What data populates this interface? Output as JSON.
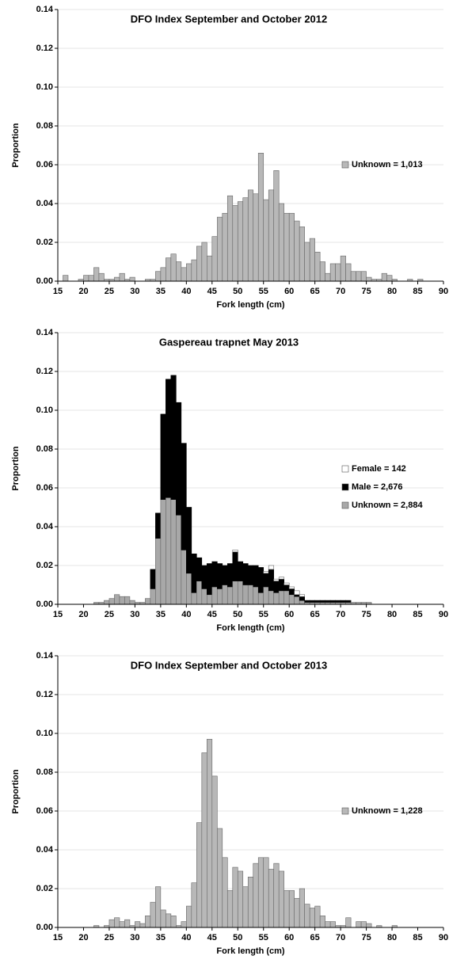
{
  "chart_data": [
    {
      "type": "bar",
      "title": "DFO Index September and October 2012",
      "xlabel": "Fork length (cm)",
      "ylabel": "Proportion",
      "x": [
        15,
        16,
        17,
        18,
        19,
        20,
        21,
        22,
        23,
        24,
        25,
        26,
        27,
        28,
        29,
        30,
        31,
        32,
        33,
        34,
        35,
        36,
        37,
        38,
        39,
        40,
        41,
        42,
        43,
        44,
        45,
        46,
        47,
        48,
        49,
        50,
        51,
        52,
        53,
        54,
        55,
        56,
        57,
        58,
        59,
        60,
        61,
        62,
        63,
        64,
        65,
        66,
        67,
        68,
        69,
        70,
        71,
        72,
        73,
        74,
        75,
        76,
        77,
        78,
        79,
        80,
        81,
        82,
        83,
        84,
        85,
        86,
        87,
        88,
        89
      ],
      "series": [
        {
          "name": "Unknown = 1,013",
          "color": "#b8b8b8",
          "values": [
            0,
            0.003,
            0,
            0,
            0.001,
            0.003,
            0.003,
            0.007,
            0.004,
            0.001,
            0.001,
            0.002,
            0.004,
            0.001,
            0.002,
            0,
            0,
            0.001,
            0.001,
            0.005,
            0.007,
            0.012,
            0.014,
            0.01,
            0.007,
            0.009,
            0.011,
            0.018,
            0.02,
            0.013,
            0.023,
            0.033,
            0.035,
            0.044,
            0.039,
            0.041,
            0.043,
            0.047,
            0.045,
            0.066,
            0.042,
            0.047,
            0.057,
            0.04,
            0.035,
            0.035,
            0.031,
            0.028,
            0.02,
            0.022,
            0.015,
            0.01,
            0.004,
            0.009,
            0.009,
            0.013,
            0.009,
            0.005,
            0.005,
            0.005,
            0.002,
            0.001,
            0.001,
            0.004,
            0.003,
            0.001,
            0,
            0,
            0.001,
            0,
            0.001,
            0,
            0,
            0,
            0
          ]
        }
      ],
      "xlim": [
        15,
        90
      ],
      "xticks": [
        15,
        20,
        25,
        30,
        35,
        40,
        45,
        50,
        55,
        60,
        65,
        70,
        75,
        80,
        85,
        90
      ],
      "ylim": [
        0,
        0.14
      ],
      "yticks": [
        {
          "value": 0,
          "label": "0.00"
        },
        {
          "value": 0.02,
          "label": "0.02"
        },
        {
          "value": 0.04,
          "label": "0.04"
        },
        {
          "value": 0.06,
          "label": "0.06"
        },
        {
          "value": 0.08,
          "label": "0.08"
        },
        {
          "value": 0.1,
          "label": "0.10"
        },
        {
          "value": 0.12,
          "label": "0.12"
        },
        {
          "value": 0.14,
          "label": "0.14"
        }
      ],
      "grid": true,
      "legend": "right"
    },
    {
      "type": "bar",
      "stacked": true,
      "title": "Gaspereau trapnet May 2013",
      "xlabel": "Fork length (cm)",
      "ylabel": "Proportion",
      "x": [
        15,
        16,
        17,
        18,
        19,
        20,
        21,
        22,
        23,
        24,
        25,
        26,
        27,
        28,
        29,
        30,
        31,
        32,
        33,
        34,
        35,
        36,
        37,
        38,
        39,
        40,
        41,
        42,
        43,
        44,
        45,
        46,
        47,
        48,
        49,
        50,
        51,
        52,
        53,
        54,
        55,
        56,
        57,
        58,
        59,
        60,
        61,
        62,
        63,
        64,
        65,
        66,
        67,
        68,
        69,
        70,
        71,
        72,
        73,
        74,
        75,
        76,
        77,
        78,
        79,
        80,
        81,
        82,
        83,
        84,
        85,
        86,
        87,
        88,
        89
      ],
      "series": [
        {
          "name": "Female = 142",
          "color": "#ffffff",
          "values": [
            0,
            0,
            0,
            0,
            0,
            0,
            0,
            0,
            0,
            0,
            0,
            0,
            0,
            0,
            0,
            0,
            0,
            0,
            0,
            0,
            0,
            0,
            0,
            0,
            0,
            0,
            0,
            0,
            0,
            0,
            0,
            0,
            0,
            0,
            0.001,
            0,
            0,
            0,
            0,
            0,
            0.001,
            0.002,
            0.001,
            0.001,
            0.001,
            0.001,
            0.002,
            0.001,
            0,
            0,
            0,
            0,
            0,
            0,
            0,
            0,
            0,
            0,
            0,
            0,
            0,
            0,
            0,
            0,
            0,
            0,
            0,
            0,
            0,
            0,
            0,
            0,
            0,
            0,
            0
          ]
        },
        {
          "name": "Male = 2,676",
          "color": "#000000",
          "values": [
            0,
            0,
            0,
            0,
            0,
            0,
            0,
            0,
            0,
            0,
            0,
            0,
            0,
            0,
            0,
            0,
            0,
            0,
            0.01,
            0.013,
            0.044,
            0.061,
            0.064,
            0.058,
            0.055,
            0.034,
            0.02,
            0.012,
            0.012,
            0.016,
            0.013,
            0.013,
            0.01,
            0.012,
            0.015,
            0.01,
            0.011,
            0.01,
            0.011,
            0.013,
            0.007,
            0.011,
            0.006,
            0.006,
            0.003,
            0.003,
            0.001,
            0.002,
            0.001,
            0.001,
            0.001,
            0.001,
            0.001,
            0.001,
            0.001,
            0.001,
            0.001,
            0,
            0,
            0,
            0,
            0,
            0,
            0,
            0,
            0,
            0,
            0,
            0,
            0,
            0,
            0,
            0,
            0,
            0
          ]
        },
        {
          "name": "Unknown = 2,884",
          "color": "#a8a8a8",
          "values": [
            0,
            0,
            0,
            0,
            0,
            0,
            0,
            0.001,
            0.001,
            0.002,
            0.003,
            0.005,
            0.004,
            0.004,
            0.002,
            0.001,
            0.001,
            0.003,
            0.008,
            0.034,
            0.054,
            0.055,
            0.054,
            0.046,
            0.028,
            0.016,
            0.006,
            0.012,
            0.008,
            0.005,
            0.009,
            0.008,
            0.01,
            0.009,
            0.012,
            0.012,
            0.01,
            0.01,
            0.009,
            0.006,
            0.009,
            0.007,
            0.006,
            0.007,
            0.007,
            0.005,
            0.004,
            0.002,
            0.001,
            0.001,
            0.001,
            0.001,
            0.001,
            0.001,
            0.001,
            0.001,
            0.001,
            0.001,
            0.001,
            0.001,
            0.001,
            0,
            0,
            0,
            0,
            0,
            0,
            0,
            0,
            0,
            0,
            0,
            0,
            0,
            0
          ]
        }
      ],
      "xlim": [
        15,
        90
      ],
      "xticks": [
        15,
        20,
        25,
        30,
        35,
        40,
        45,
        50,
        55,
        60,
        65,
        70,
        75,
        80,
        85,
        90
      ],
      "ylim": [
        0,
        0.14
      ],
      "yticks": [
        {
          "value": 0,
          "label": "0.00"
        },
        {
          "value": 0.02,
          "label": "0.02"
        },
        {
          "value": 0.04,
          "label": "0.04"
        },
        {
          "value": 0.06,
          "label": "0.06"
        },
        {
          "value": 0.08,
          "label": "0.08"
        },
        {
          "value": 0.1,
          "label": "0.10"
        },
        {
          "value": 0.12,
          "label": "0.12"
        },
        {
          "value": 0.14,
          "label": "0.14"
        }
      ],
      "grid": true,
      "legend": "right"
    },
    {
      "type": "bar",
      "title": "DFO Index September and October 2013",
      "xlabel": "Fork length (cm)",
      "ylabel": "Proportion",
      "x": [
        15,
        16,
        17,
        18,
        19,
        20,
        21,
        22,
        23,
        24,
        25,
        26,
        27,
        28,
        29,
        30,
        31,
        32,
        33,
        34,
        35,
        36,
        37,
        38,
        39,
        40,
        41,
        42,
        43,
        44,
        45,
        46,
        47,
        48,
        49,
        50,
        51,
        52,
        53,
        54,
        55,
        56,
        57,
        58,
        59,
        60,
        61,
        62,
        63,
        64,
        65,
        66,
        67,
        68,
        69,
        70,
        71,
        72,
        73,
        74,
        75,
        76,
        77,
        78,
        79,
        80,
        81,
        82,
        83,
        84,
        85,
        86,
        87,
        88,
        89
      ],
      "series": [
        {
          "name": "Unknown = 1,228",
          "color": "#b8b8b8",
          "values": [
            0,
            0,
            0,
            0,
            0,
            0,
            0,
            0.001,
            0,
            0.001,
            0.004,
            0.005,
            0.003,
            0.004,
            0.001,
            0.003,
            0.002,
            0.006,
            0.013,
            0.021,
            0.009,
            0.007,
            0.006,
            0.001,
            0.003,
            0.011,
            0.023,
            0.054,
            0.09,
            0.097,
            0.078,
            0.051,
            0.036,
            0.019,
            0.031,
            0.029,
            0.021,
            0.026,
            0.033,
            0.036,
            0.036,
            0.03,
            0.033,
            0.029,
            0.019,
            0.019,
            0.015,
            0.02,
            0.012,
            0.01,
            0.011,
            0.006,
            0.003,
            0.003,
            0.001,
            0.001,
            0.005,
            0,
            0.003,
            0.003,
            0.002,
            0,
            0.001,
            0,
            0,
            0.001,
            0,
            0,
            0,
            0,
            0,
            0,
            0,
            0,
            0
          ]
        }
      ],
      "xlim": [
        15,
        90
      ],
      "xticks": [
        15,
        20,
        25,
        30,
        35,
        40,
        45,
        50,
        55,
        60,
        65,
        70,
        75,
        80,
        85,
        90
      ],
      "ylim": [
        0,
        0.14
      ],
      "yticks": [
        {
          "value": 0,
          "label": "0.00"
        },
        {
          "value": 0.02,
          "label": "0.02"
        },
        {
          "value": 0.04,
          "label": "0.04"
        },
        {
          "value": 0.06,
          "label": "0.06"
        },
        {
          "value": 0.08,
          "label": "0.08"
        },
        {
          "value": 0.1,
          "label": "0.10"
        },
        {
          "value": 0.12,
          "label": "0.12"
        },
        {
          "value": 0.14,
          "label": "0.14"
        }
      ],
      "grid": true,
      "legend": "right"
    }
  ]
}
